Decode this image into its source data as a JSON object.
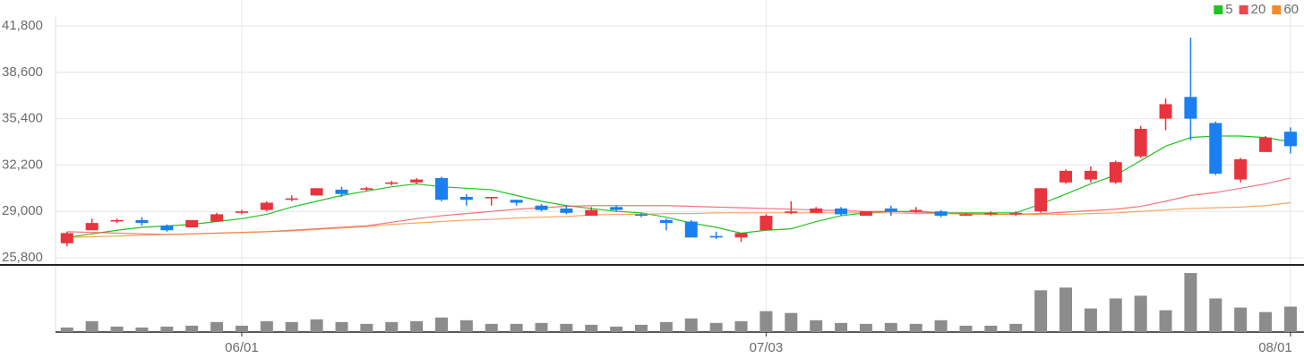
{
  "chart_data": {
    "type": "candlestick",
    "categories": [
      null,
      null,
      null,
      null,
      null,
      null,
      null,
      "06/01",
      null,
      null,
      null,
      null,
      null,
      null,
      null,
      null,
      null,
      null,
      null,
      null,
      null,
      null,
      null,
      null,
      null,
      null,
      null,
      null,
      "07/03",
      null,
      null,
      null,
      null,
      null,
      null,
      null,
      null,
      null,
      null,
      null,
      null,
      null,
      null,
      null,
      null,
      null,
      null,
      null,
      null,
      "08/01"
    ],
    "open": [
      26800,
      27700,
      28300,
      28400,
      28000,
      27900,
      28300,
      28900,
      29100,
      29800,
      30100,
      30500,
      30500,
      30900,
      31000,
      31300,
      30000,
      29900,
      29800,
      29400,
      29200,
      28700,
      29300,
      28800,
      28400,
      28300,
      27300,
      27200,
      27700,
      28900,
      28900,
      29200,
      28700,
      29200,
      29000,
      29000,
      28700,
      28800,
      28800,
      29000,
      31000,
      31200,
      31000,
      32800,
      35400,
      36900,
      35100,
      31200,
      33100,
      34500
    ],
    "high": [
      27600,
      28500,
      28500,
      28600,
      28100,
      28400,
      28900,
      29100,
      29700,
      30100,
      30600,
      30700,
      30700,
      31100,
      31300,
      31400,
      30200,
      30000,
      29800,
      29500,
      29400,
      29300,
      29400,
      28900,
      28500,
      28400,
      27600,
      27500,
      28800,
      29700,
      29300,
      29300,
      29000,
      29400,
      29300,
      29100,
      28900,
      29000,
      29000,
      30600,
      31900,
      32100,
      32500,
      34900,
      36800,
      41000,
      35200,
      32700,
      34200,
      34800
    ],
    "low": [
      26600,
      27700,
      28200,
      28000,
      27600,
      27900,
      28300,
      28800,
      29000,
      29700,
      30100,
      30000,
      30400,
      30800,
      30900,
      29700,
      29400,
      29400,
      29400,
      29000,
      28800,
      28700,
      29000,
      28600,
      27700,
      27200,
      27100,
      26900,
      27700,
      28800,
      28900,
      28700,
      28700,
      28700,
      28900,
      28600,
      28700,
      28700,
      28700,
      28900,
      30900,
      31000,
      30900,
      32700,
      34600,
      33900,
      31500,
      31000,
      33100,
      33000
    ],
    "close": [
      27500,
      28200,
      28400,
      28200,
      27700,
      28400,
      28800,
      29000,
      29600,
      29900,
      30600,
      30200,
      30600,
      31000,
      31200,
      29800,
      29800,
      30000,
      29600,
      29100,
      28900,
      29100,
      29100,
      28700,
      28200,
      27200,
      27200,
      27500,
      28700,
      29000,
      29200,
      28800,
      29000,
      29000,
      29100,
      28700,
      28800,
      28900,
      28900,
      30600,
      31800,
      31800,
      32400,
      34700,
      36400,
      35400,
      31600,
      32600,
      34100,
      33500
    ],
    "up_color": "#e8343e",
    "down_color": "#1a7ff0",
    "series": [
      {
        "name": "5",
        "color": "#22c322",
        "values": [
          27200,
          27450,
          27700,
          27900,
          28000,
          28100,
          28300,
          28500,
          28800,
          29300,
          29700,
          30100,
          30400,
          30700,
          30900,
          30700,
          30600,
          30500,
          30100,
          29700,
          29400,
          29200,
          29000,
          28900,
          28600,
          28200,
          27900,
          27500,
          27700,
          27800,
          28300,
          28700,
          28900,
          29000,
          29000,
          28900,
          28900,
          28900,
          28900,
          29500,
          30200,
          30900,
          31500,
          32500,
          33500,
          34100,
          34200,
          34200,
          34100,
          33800
        ]
      },
      {
        "name": "20",
        "color": "#f04650",
        "values": [
          27600,
          27550,
          27500,
          27450,
          27400,
          27450,
          27500,
          27550,
          27600,
          27700,
          27800,
          27900,
          28000,
          28250,
          28500,
          28700,
          28850,
          29000,
          29150,
          29250,
          29350,
          29400,
          29400,
          29400,
          29400,
          29350,
          29300,
          29250,
          29200,
          29150,
          29100,
          29050,
          29000,
          29000,
          28950,
          28900,
          28850,
          28800,
          28800,
          28850,
          28950,
          29050,
          29150,
          29350,
          29700,
          30100,
          30300,
          30600,
          30900,
          31300
        ]
      },
      {
        "name": "60",
        "color": "#f5892a",
        "values": [
          27200,
          27250,
          27300,
          27350,
          27400,
          27450,
          27500,
          27550,
          27600,
          27650,
          27750,
          27850,
          27950,
          28100,
          28200,
          28300,
          28400,
          28450,
          28550,
          28600,
          28650,
          28750,
          28800,
          28800,
          28850,
          28850,
          28900,
          28900,
          28900,
          28900,
          28900,
          28900,
          28900,
          28900,
          28850,
          28850,
          28800,
          28800,
          28800,
          28800,
          28800,
          28850,
          28900,
          29000,
          29100,
          29200,
          29250,
          29300,
          29400,
          29600
        ]
      }
    ],
    "volume": {
      "color": "#8c8c8c",
      "ylim": [
        0,
        70
      ],
      "values": [
        5,
        12,
        6,
        5,
        6,
        7,
        11,
        7,
        12,
        11,
        14,
        11,
        9,
        11,
        12,
        16,
        13,
        9,
        9,
        10,
        9,
        8,
        6,
        8,
        11,
        15,
        10,
        12,
        23,
        21,
        13,
        10,
        9,
        10,
        9,
        13,
        7,
        7,
        9,
        46,
        49,
        26,
        37,
        40,
        24,
        65,
        37,
        27,
        22,
        28
      ]
    },
    "ylim": [
      25800,
      41800
    ],
    "yticks": [
      {
        "value": 25800,
        "label": "25,800"
      },
      {
        "value": 29000,
        "label": "29,000"
      },
      {
        "value": 32200,
        "label": "32,200"
      },
      {
        "value": 35400,
        "label": "35,400"
      },
      {
        "value": 38600,
        "label": "38,600"
      },
      {
        "value": 41800,
        "label": "41,800"
      }
    ],
    "grid": true,
    "legend": "top-right"
  }
}
